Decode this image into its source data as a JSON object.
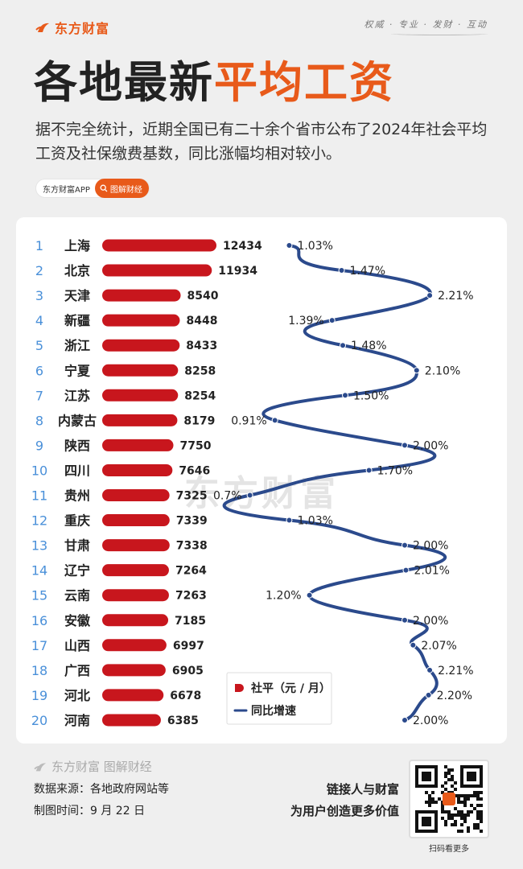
{
  "brand": {
    "name": "东方财富",
    "slogan": "权威 · 专业 · 发财 · 互动"
  },
  "title": {
    "part1": "各地最新",
    "part2": "平均工资"
  },
  "subtitle": "据不完全统计，近期全国已有二十余个省市公布了2024年社会平均工资及社保缴费基数，同比涨幅均相对较小。",
  "tag": {
    "app": "东方财富APP",
    "button": "图解财经"
  },
  "watermark": "东方财富",
  "colors": {
    "accent": "#e85a1a",
    "bar": "#c8161d",
    "line": "#2b4a8c",
    "rank": "#4a90d9"
  },
  "chart_data": {
    "type": "bar",
    "categories": [
      "上海",
      "北京",
      "天津",
      "新疆",
      "浙江",
      "宁夏",
      "江苏",
      "内蒙古",
      "陕西",
      "四川",
      "贵州",
      "重庆",
      "甘肃",
      "辽宁",
      "云南",
      "安徽",
      "山西",
      "广西",
      "河北",
      "河南"
    ],
    "ranks": [
      "1",
      "2",
      "3",
      "4",
      "5",
      "6",
      "7",
      "8",
      "9",
      "10",
      "11",
      "12",
      "13",
      "14",
      "15",
      "16",
      "17",
      "18",
      "19",
      "20"
    ],
    "series": [
      {
        "name": "社平（元 / 月）",
        "type": "bar",
        "values": [
          12434,
          11934,
          8540,
          8448,
          8433,
          8258,
          8254,
          8179,
          7750,
          7646,
          7325,
          7339,
          7338,
          7264,
          7263,
          7185,
          6997,
          6905,
          6678,
          6385
        ]
      },
      {
        "name": "同比增速",
        "type": "line",
        "values": [
          1.03,
          1.47,
          2.21,
          1.39,
          1.48,
          2.1,
          1.5,
          0.91,
          2.0,
          1.7,
          0.7,
          1.03,
          2.0,
          2.01,
          1.2,
          2.0,
          2.07,
          2.21,
          2.2,
          2.0
        ],
        "labels": [
          "1.03%",
          "1.47%",
          "2.21%",
          "1.39%",
          "1.48%",
          "2.10%",
          "1.50%",
          "0.91%",
          "2.00%",
          "1.70%",
          "0.7%",
          "1.03%",
          "2.00%",
          "2.01%",
          "1.20%",
          "2.00%",
          "2.07%",
          "2.21%",
          "2.20%",
          "2.00%"
        ]
      }
    ],
    "legend": {
      "bar": "社平（元 / 月）",
      "line": "同比增速",
      "position": "bottom-right"
    }
  },
  "footer": {
    "logo": "东方财富 图解财经",
    "source": "数据来源：各地政府网站等",
    "date": "制图时间：9 月 22 日",
    "motto1": "链接人与财富",
    "motto2": "为用户创造更多价值",
    "qr_caption": "扫码看更多"
  }
}
